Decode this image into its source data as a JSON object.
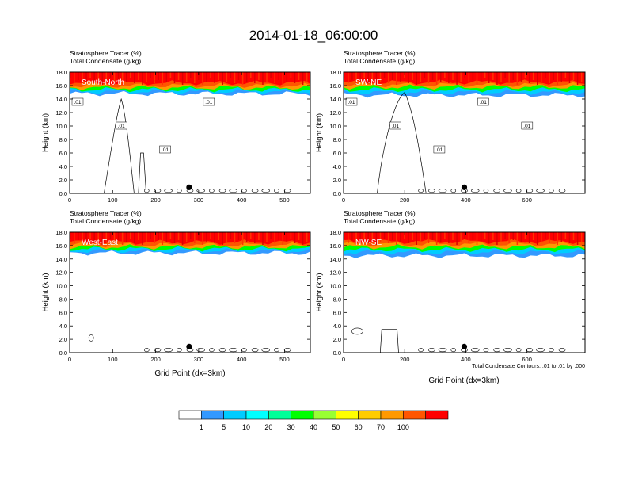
{
  "figure": {
    "title": "2014-01-18_06:00:00",
    "note": "Total Condensate Contours: .01 to .01 by .000",
    "xlabel": "Grid Point (dx=3km)"
  },
  "colorbar": {
    "labels": [
      "1",
      "5",
      "10",
      "20",
      "30",
      "40",
      "50",
      "60",
      "70",
      "100"
    ],
    "colors": [
      "#ffffff",
      "#3399ff",
      "#00ccff",
      "#00ffff",
      "#00ff99",
      "#00ff00",
      "#99ff33",
      "#ffff00",
      "#ffcc00",
      "#ff9900",
      "#ff5500",
      "#ff0000"
    ]
  },
  "chart_data": [
    {
      "type": "heatmap",
      "panel_label": "South-North",
      "left_title_1": "Stratosphere Tracer   (%)",
      "left_title_2": "Total Condensate   (g/kg)",
      "ylabel": "Height (km)",
      "xlim": [
        0,
        560
      ],
      "ylim": [
        0,
        18
      ],
      "xticks": [
        0,
        100,
        200,
        300,
        400,
        500
      ],
      "yticks": [
        "0.0",
        "2.0",
        "4.0",
        "6.0",
        "8.0",
        "10.0",
        "12.0",
        "14.0",
        "16.0",
        "18.0"
      ],
      "contour_labels": [
        ".01",
        ".01",
        ".01",
        ".01"
      ],
      "tracer_layers_km": {
        "red": 16.4,
        "orange": 16.0,
        "yellow": 15.7,
        "green": 15.4,
        "cyan": 15.1,
        "blue": 14.8
      },
      "marker_x": 278
    },
    {
      "type": "heatmap",
      "panel_label": "SW-NE",
      "left_title_1": "Stratosphere Tracer   (%)",
      "left_title_2": "Total Condensate   (g/kg)",
      "ylabel": "Height (km)",
      "xlim": [
        0,
        790
      ],
      "ylim": [
        0,
        18
      ],
      "xticks": [
        0,
        200,
        400,
        600
      ],
      "yticks": [
        "0.0",
        "2.0",
        "4.0",
        "6.0",
        "8.0",
        "10.0",
        "12.0",
        "14.0",
        "16.0",
        "18.0"
      ],
      "contour_labels": [
        ".01",
        ".01",
        ".01",
        ".01",
        ".01"
      ],
      "tracer_layers_km": {
        "red": 16.5,
        "orange": 16.1,
        "yellow": 15.8,
        "green": 15.4,
        "cyan": 15.0,
        "blue": 14.6
      },
      "marker_x": 395
    },
    {
      "type": "heatmap",
      "panel_label": "West-East",
      "left_title_1": "Stratosphere Tracer   (%)",
      "left_title_2": "Total Condensate   (g/kg)",
      "ylabel": "Height (km)",
      "xlim": [
        0,
        560
      ],
      "ylim": [
        0,
        18
      ],
      "xticks": [
        0,
        100,
        200,
        300,
        400,
        500
      ],
      "yticks": [
        "0.0",
        "2.0",
        "4.0",
        "6.0",
        "8.0",
        "10.0",
        "12.0",
        "14.0",
        "16.0",
        "18.0"
      ],
      "contour_labels": [],
      "tracer_layers_km": {
        "red": 16.5,
        "orange": 16.1,
        "yellow": 15.8,
        "green": 15.5,
        "cyan": 15.2,
        "blue": 14.9
      },
      "marker_x": 278
    },
    {
      "type": "heatmap",
      "panel_label": "NW-SE",
      "left_title_1": "Stratosphere Tracer   (%)",
      "left_title_2": "Total Condensate   (g/kg)",
      "ylabel": "Height (km)",
      "xlim": [
        0,
        790
      ],
      "ylim": [
        0,
        18
      ],
      "xticks": [
        0,
        200,
        400,
        600
      ],
      "yticks": [
        "0.0",
        "2.0",
        "4.0",
        "6.0",
        "8.0",
        "10.0",
        "12.0",
        "14.0",
        "16.0",
        "18.0"
      ],
      "contour_labels": [],
      "tracer_layers_km": {
        "red": 16.6,
        "orange": 16.2,
        "yellow": 15.8,
        "green": 15.4,
        "cyan": 15.0,
        "blue": 14.5
      },
      "marker_x": 395
    }
  ]
}
